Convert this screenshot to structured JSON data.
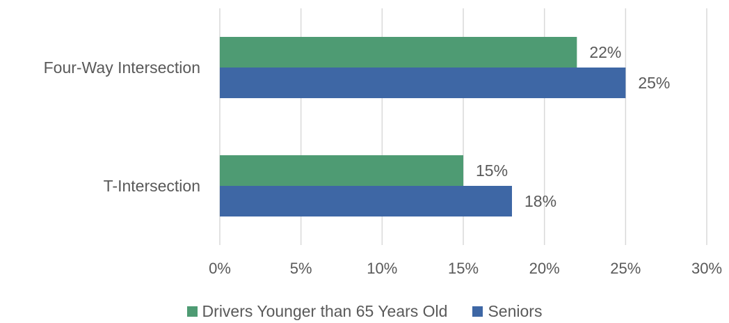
{
  "chart_data": {
    "type": "bar",
    "orientation": "horizontal",
    "categories": [
      "Four-Way Intersection",
      "T-Intersection"
    ],
    "series": [
      {
        "name": "Drivers Younger than 65 Years Old",
        "values": [
          22,
          15
        ],
        "labels": [
          "22%",
          "15%"
        ],
        "color": "#4e9b73"
      },
      {
        "name": "Seniors",
        "values": [
          25,
          18
        ],
        "labels": [
          "25%",
          "18%"
        ],
        "color": "#3e67a5"
      }
    ],
    "xlim": [
      0,
      30
    ],
    "x_ticks": [
      0,
      5,
      10,
      15,
      20,
      25,
      30
    ],
    "x_tick_labels": [
      "0%",
      "5%",
      "10%",
      "15%",
      "20%",
      "25%",
      "30%"
    ],
    "grid": "vertical",
    "legend_position": "bottom"
  }
}
